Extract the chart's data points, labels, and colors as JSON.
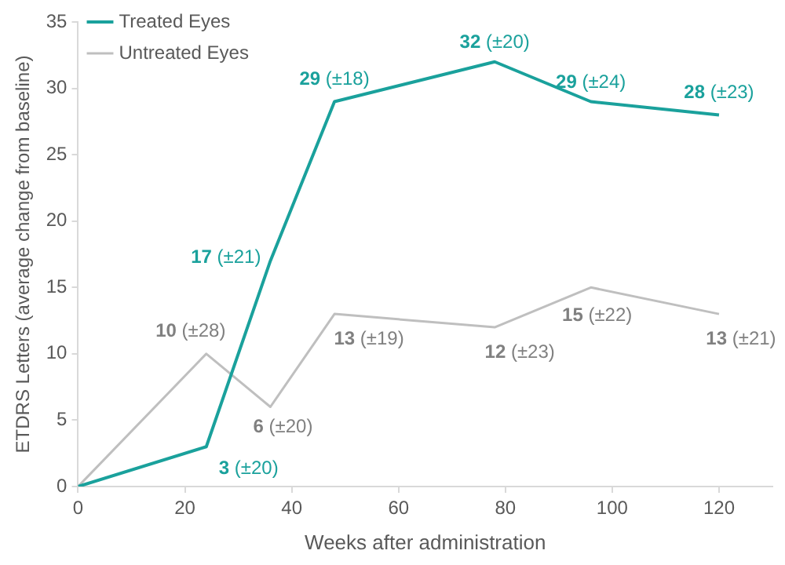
{
  "chart_data": {
    "type": "line",
    "xlabel": "Weeks after administration",
    "ylabel": "ETDRS Letters (average change from baseline)",
    "xlim": [
      0,
      130
    ],
    "xticks": [
      0,
      20,
      40,
      60,
      80,
      100,
      120
    ],
    "ylim": [
      0,
      35
    ],
    "yticks": [
      0,
      5,
      10,
      15,
      20,
      25,
      30,
      35
    ],
    "grid": false,
    "legend": "top left",
    "marker": "none",
    "series": [
      {
        "name": "Treated Eyes",
        "color": "#1aa19c",
        "x": [
          0,
          24,
          36,
          48,
          78,
          96,
          120
        ],
        "values": [
          0,
          3,
          17,
          29,
          32,
          29,
          28
        ],
        "value_labels": [
          null,
          "3 (±20)",
          "17 (±21)",
          "29 (±18)",
          "32 (±20)",
          "29 (±24)",
          "28 (±23)"
        ]
      },
      {
        "name": "Untreated Eyes",
        "color": "#bfbfbf",
        "x": [
          0,
          24,
          36,
          48,
          78,
          96,
          120
        ],
        "values": [
          0,
          10,
          6,
          13,
          12,
          15,
          13
        ],
        "value_labels": [
          null,
          "10 (±28)",
          "6 (±20)",
          "13 (±19)",
          "12 (±23)",
          "15 (±22)",
          "13 (±21)"
        ]
      }
    ]
  }
}
